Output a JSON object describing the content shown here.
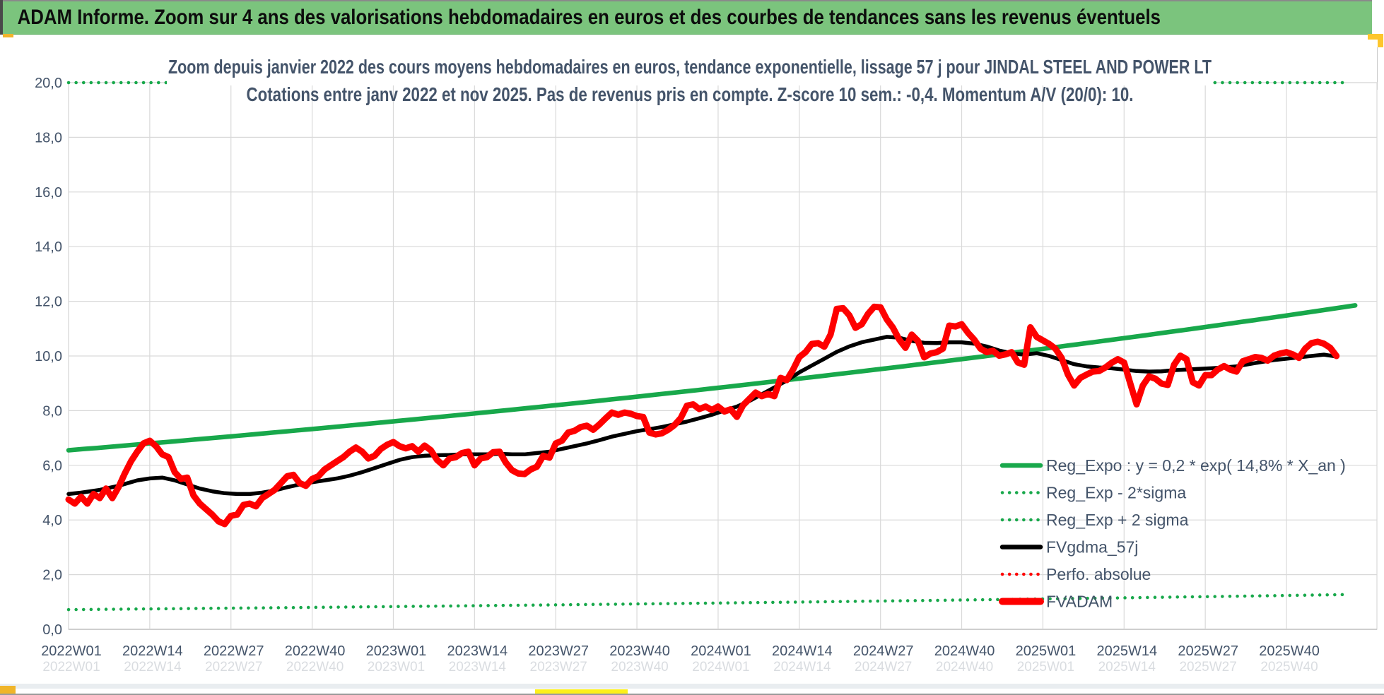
{
  "window": {
    "header_title": "ADAM Informe. Zoom sur 4 ans des valorisations hebdomadaires en euros et des courbes de tendances sans les revenus éventuels"
  },
  "colors": {
    "header_green": "#7bc47d",
    "accent_yellow": "#fdc62c",
    "scroll_thumb_yellow": "#fdf019",
    "series_green": "#18a84b",
    "series_red": "#fe0000",
    "series_black": "#000000",
    "grid": "#d9d9d9",
    "axis": "#bfbfbf",
    "text": "#44546a"
  },
  "chart_data": {
    "type": "line",
    "title_line1": "Zoom depuis janvier 2022 des cours moyens hebdomadaires en euros, tendance exponentielle, lissage 57 j pour JINDAL STEEL AND POWER LT",
    "title_line2": "Cotations entre janv 2022 et nov 2025. Pas de revenus pris en compte. Z-score 10 sem.: -0,4. Momentum A/V (20/0): 10.",
    "ylim": [
      0,
      20
    ],
    "grid": true,
    "legend_position": "inside-right-bottom",
    "y_tick_values": [
      0,
      2,
      4,
      6,
      8,
      10,
      12,
      14,
      16,
      18,
      20
    ],
    "y_tick_labels": [
      "0,0",
      "2,0",
      "4,0",
      "6,0",
      "8,0",
      "10,0",
      "12,0",
      "14,0",
      "16,0",
      "18,0",
      "20,0"
    ],
    "x_tick_weeks": [
      1,
      14,
      27,
      40,
      53,
      66,
      79,
      92,
      105,
      118,
      131,
      144,
      157,
      170,
      183,
      196
    ],
    "x_tick_labels": [
      "2022W01",
      "2022W14",
      "2022W27",
      "2022W40",
      "2023W01",
      "2023W14",
      "2023W27",
      "2023W40",
      "2024W01",
      "2024W14",
      "2024W27",
      "2024W40",
      "2025W01",
      "2025W14",
      "2025W27",
      "2025W40"
    ],
    "series": [
      {
        "name": "Reg_Expo : y = 0,2 * exp( 14,8% *  X_an )",
        "color": "#18a84b",
        "style": "solid",
        "width": 6.5,
        "kind": "exp",
        "start_week": 1,
        "end_week": 207,
        "start_value": 6.55,
        "end_value": 11.85
      },
      {
        "name": "Reg_Exp - 2*sigma",
        "color": "#18a84b",
        "style": "dotted",
        "width": 4.5,
        "kind": "exp",
        "start_week": 1,
        "end_week": 205,
        "start_value": 0.72,
        "end_value": 1.27
      },
      {
        "name": "Reg_Exp + 2 sigma",
        "color": "#18a84b",
        "style": "dotted",
        "width": 4.5,
        "kind": "flat",
        "start_week": 1,
        "end_week": 205,
        "value": 20.0
      },
      {
        "name": "FVgdma_57j",
        "color": "#000000",
        "style": "solid",
        "width": 5.5,
        "kind": "points",
        "points": [
          [
            1,
            4.95
          ],
          [
            3,
            5.0
          ],
          [
            6,
            5.1
          ],
          [
            9,
            5.25
          ],
          [
            12,
            5.45
          ],
          [
            14,
            5.52
          ],
          [
            16,
            5.55
          ],
          [
            18,
            5.45
          ],
          [
            20,
            5.3
          ],
          [
            22,
            5.15
          ],
          [
            24,
            5.05
          ],
          [
            26,
            4.98
          ],
          [
            28,
            4.95
          ],
          [
            30,
            4.95
          ],
          [
            32,
            5.0
          ],
          [
            34,
            5.08
          ],
          [
            36,
            5.2
          ],
          [
            38,
            5.3
          ],
          [
            40,
            5.38
          ],
          [
            42,
            5.45
          ],
          [
            44,
            5.52
          ],
          [
            46,
            5.62
          ],
          [
            48,
            5.75
          ],
          [
            50,
            5.9
          ],
          [
            52,
            6.05
          ],
          [
            54,
            6.2
          ],
          [
            56,
            6.3
          ],
          [
            58,
            6.35
          ],
          [
            60,
            6.37
          ],
          [
            62,
            6.38
          ],
          [
            64,
            6.4
          ],
          [
            66,
            6.4
          ],
          [
            68,
            6.4
          ],
          [
            70,
            6.42
          ],
          [
            72,
            6.4
          ],
          [
            74,
            6.4
          ],
          [
            76,
            6.45
          ],
          [
            78,
            6.5
          ],
          [
            80,
            6.6
          ],
          [
            82,
            6.7
          ],
          [
            84,
            6.8
          ],
          [
            86,
            6.92
          ],
          [
            88,
            7.05
          ],
          [
            90,
            7.15
          ],
          [
            92,
            7.25
          ],
          [
            94,
            7.32
          ],
          [
            96,
            7.4
          ],
          [
            98,
            7.5
          ],
          [
            100,
            7.6
          ],
          [
            102,
            7.72
          ],
          [
            104,
            7.85
          ],
          [
            106,
            8.0
          ],
          [
            108,
            8.15
          ],
          [
            110,
            8.35
          ],
          [
            112,
            8.6
          ],
          [
            114,
            8.85
          ],
          [
            116,
            9.1
          ],
          [
            118,
            9.4
          ],
          [
            120,
            9.65
          ],
          [
            122,
            9.9
          ],
          [
            124,
            10.15
          ],
          [
            126,
            10.35
          ],
          [
            128,
            10.5
          ],
          [
            130,
            10.6
          ],
          [
            132,
            10.7
          ],
          [
            134,
            10.67
          ],
          [
            136,
            10.55
          ],
          [
            138,
            10.48
          ],
          [
            140,
            10.47
          ],
          [
            142,
            10.5
          ],
          [
            144,
            10.5
          ],
          [
            146,
            10.45
          ],
          [
            148,
            10.35
          ],
          [
            150,
            10.2
          ],
          [
            152,
            10.1
          ],
          [
            154,
            10.05
          ],
          [
            156,
            10.1
          ],
          [
            158,
            10.0
          ],
          [
            160,
            9.85
          ],
          [
            162,
            9.7
          ],
          [
            164,
            9.62
          ],
          [
            166,
            9.58
          ],
          [
            168,
            9.55
          ],
          [
            170,
            9.5
          ],
          [
            172,
            9.45
          ],
          [
            174,
            9.43
          ],
          [
            176,
            9.44
          ],
          [
            178,
            9.48
          ],
          [
            180,
            9.5
          ],
          [
            182,
            9.53
          ],
          [
            184,
            9.55
          ],
          [
            186,
            9.58
          ],
          [
            188,
            9.62
          ],
          [
            190,
            9.7
          ],
          [
            192,
            9.78
          ],
          [
            194,
            9.85
          ],
          [
            196,
            9.9
          ],
          [
            198,
            9.95
          ],
          [
            200,
            10.0
          ],
          [
            202,
            10.05
          ],
          [
            204,
            9.98
          ]
        ]
      },
      {
        "name": "Perfo. absolue",
        "color": "#fe0000",
        "style": "dotted",
        "width": 4.5,
        "kind": "none"
      },
      {
        "name": "FVADAM",
        "color": "#fe0000",
        "style": "solid",
        "width": 9,
        "kind": "weekly",
        "start_week": 1,
        "values": [
          4.75,
          4.6,
          4.85,
          4.6,
          4.95,
          4.8,
          5.15,
          4.8,
          5.2,
          5.7,
          6.15,
          6.5,
          6.8,
          6.9,
          6.7,
          6.4,
          6.3,
          5.75,
          5.5,
          5.55,
          4.9,
          4.6,
          4.4,
          4.2,
          3.95,
          3.85,
          4.15,
          4.2,
          4.55,
          4.6,
          4.5,
          4.8,
          4.95,
          5.1,
          5.35,
          5.6,
          5.65,
          5.35,
          5.25,
          5.5,
          5.6,
          5.85,
          6.0,
          6.15,
          6.3,
          6.5,
          6.65,
          6.5,
          6.25,
          6.35,
          6.6,
          6.75,
          6.85,
          6.7,
          6.62,
          6.7,
          6.5,
          6.72,
          6.55,
          6.2,
          6.0,
          6.25,
          6.3,
          6.45,
          6.5,
          6.0,
          6.25,
          6.3,
          6.48,
          6.5,
          6.1,
          5.82,
          5.7,
          5.68,
          5.85,
          5.95,
          6.35,
          6.28,
          6.8,
          6.9,
          7.2,
          7.26,
          7.4,
          7.45,
          7.3,
          7.5,
          7.72,
          7.93,
          7.85,
          7.93,
          7.89,
          7.8,
          7.77,
          7.2,
          7.13,
          7.17,
          7.3,
          7.47,
          7.72,
          8.18,
          8.23,
          8.06,
          8.15,
          8.02,
          8.15,
          7.97,
          8.05,
          7.77,
          8.2,
          8.43,
          8.66,
          8.53,
          8.61,
          8.53,
          9.2,
          9.12,
          9.5,
          9.96,
          10.14,
          10.44,
          10.47,
          10.34,
          10.78,
          11.72,
          11.75,
          11.49,
          11.03,
          11.16,
          11.54,
          11.8,
          11.78,
          11.34,
          11.03,
          10.6,
          10.3,
          10.78,
          10.55,
          9.95,
          10.09,
          10.14,
          10.27,
          11.11,
          11.08,
          11.16,
          10.85,
          10.6,
          10.27,
          10.14,
          10.19,
          10.01,
          10.06,
          10.14,
          9.76,
          9.68,
          11.05,
          10.7,
          10.57,
          10.44,
          10.27,
          9.93,
          9.32,
          8.92,
          9.2,
          9.32,
          9.43,
          9.45,
          9.58,
          9.75,
          9.88,
          9.76,
          8.99,
          8.23,
          8.92,
          9.25,
          9.17,
          8.99,
          8.94,
          9.68,
          10.01,
          9.88,
          9.04,
          8.92,
          9.3,
          9.3,
          9.5,
          9.63,
          9.5,
          9.43,
          9.81,
          9.88,
          9.96,
          9.93,
          9.83,
          10.01,
          10.09,
          10.14,
          10.06,
          9.93,
          10.27,
          10.47,
          10.52,
          10.45,
          10.3,
          10.0
        ]
      }
    ]
  }
}
